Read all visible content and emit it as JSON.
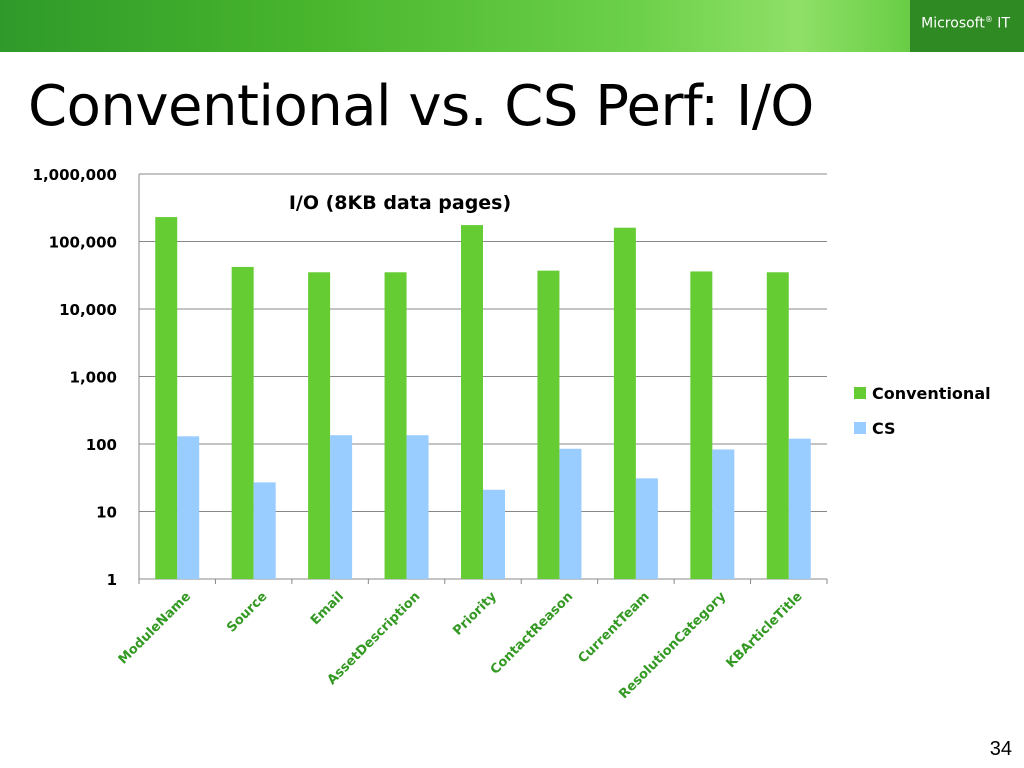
{
  "header": {
    "brand": "Microsoft",
    "brand_mark": "®",
    "brand_suffix": " IT"
  },
  "slide": {
    "title": "Conventional vs. CS Perf: I/O",
    "page_number": "34"
  },
  "colors": {
    "conventional": "#66cc33",
    "cs": "#99ccff",
    "gridline": "#888888"
  },
  "chart_data": {
    "type": "bar",
    "title": "I/O (8KB data pages)",
    "xlabel": "",
    "ylabel": "",
    "scale": "log",
    "ylim": [
      1,
      1000000
    ],
    "y_ticks": [
      1,
      10,
      100,
      1000,
      10000,
      100000,
      1000000
    ],
    "y_tick_labels": [
      "1",
      "10",
      "100",
      "1,000",
      "10,000",
      "100,000",
      "1,000,000"
    ],
    "grid": true,
    "legend_position": "right",
    "categories": [
      "ModuleName",
      "Source",
      "Email",
      "AssetDescription",
      "Priority",
      "ContactReason",
      "CurrentTeam",
      "ResolutionCategory",
      "KBArticleTitle"
    ],
    "series": [
      {
        "name": "Conventional",
        "values": [
          230000,
          42000,
          35000,
          35000,
          175000,
          37000,
          160000,
          36000,
          35000
        ]
      },
      {
        "name": "CS",
        "values": [
          130,
          27,
          135,
          135,
          21,
          85,
          31,
          83,
          120
        ]
      }
    ]
  }
}
